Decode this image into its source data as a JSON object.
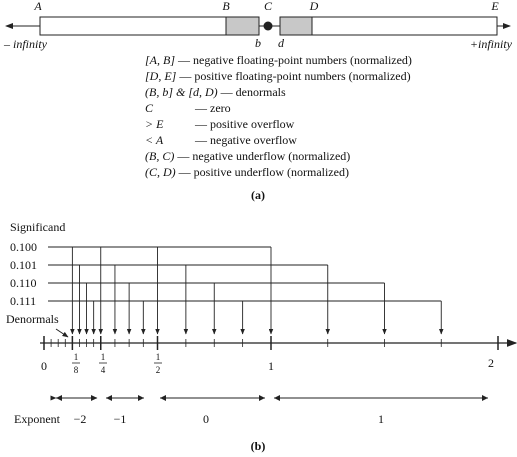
{
  "part_a": {
    "points": {
      "A": "A",
      "B": "B",
      "C": "C",
      "D": "D",
      "E": "E",
      "b": "b",
      "d": "d"
    },
    "neg_infinity": "– infinity",
    "pos_infinity": "+infinity",
    "legend": [
      {
        "key": "[A, B]",
        "dash": "—",
        "text": "negative floating-point numbers (normalized)"
      },
      {
        "key": "[D, E]",
        "dash": "—",
        "text": "positive floating-point numbers (normalized)"
      },
      {
        "key": "(B, b] & [d, D)",
        "dash": "—",
        "text": "denormals"
      },
      {
        "key": "C",
        "dash": "—",
        "text": "zero"
      },
      {
        "key": "> E",
        "dash": "—",
        "text": "positive overflow"
      },
      {
        "key": "< A",
        "dash": "—",
        "text": "negative overflow"
      },
      {
        "key": "(B, C)",
        "dash": "—",
        "text": "negative underflow (normalized)"
      },
      {
        "key": "(C, D)",
        "dash": "—",
        "text": "positive underflow (normalized)"
      }
    ],
    "caption": "(a)",
    "colors": {
      "shaded": "#c8c8c8",
      "stroke": "#222222"
    }
  },
  "part_b": {
    "significand_label": "Significand",
    "significands": [
      "0.100",
      "0.101",
      "0.110",
      "0.111"
    ],
    "denormals_label": "Denormals",
    "axis_labels": {
      "zero": "0",
      "eighth_num": "1",
      "eighth_den": "8",
      "quarter_num": "1",
      "quarter_den": "4",
      "half_num": "1",
      "half_den": "2",
      "one": "1",
      "two": "2"
    },
    "exponent_label": "Exponent",
    "exponents": [
      "−2",
      "−1",
      "0",
      "1"
    ],
    "caption": "(b)"
  }
}
